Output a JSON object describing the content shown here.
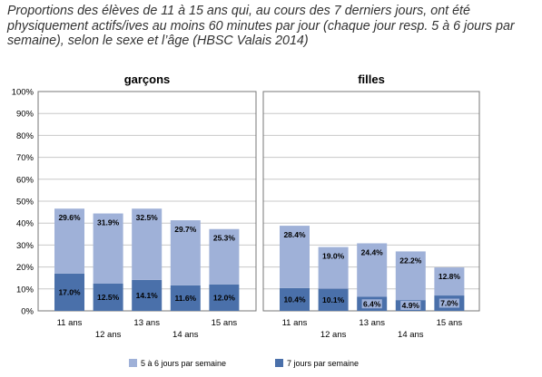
{
  "title": "Proportions des élèves de 11 à 15 ans qui, au cours des 7 derniers jours, ont été physiquement actifs/ives au moins 60 minutes par jour (chaque jour resp. 5 à 6 jours par semaine), selon le sexe et l’âge (HBSC Valais 2014)",
  "chart_data": {
    "type": "bar",
    "stacked": true,
    "ylim": [
      0,
      100
    ],
    "ytick_labels": [
      "0%",
      "10%",
      "20%",
      "30%",
      "40%",
      "50%",
      "60%",
      "70%",
      "80%",
      "90%",
      "100%"
    ],
    "grid": true,
    "legend_position": "bottom",
    "colors": {
      "top": "#9fb1d8",
      "bottom": "#4a70aa",
      "grid": "#c8c8c8"
    },
    "series": [
      {
        "name": "7 jours par semaine",
        "key": "bottom"
      },
      {
        "name": "5 à 6 jours par semaine",
        "key": "top"
      }
    ],
    "panels": [
      {
        "title": "garçons",
        "categories": [
          "11 ans",
          "12 ans",
          "13 ans",
          "14 ans",
          "15 ans"
        ],
        "bottom": [
          17.0,
          12.5,
          14.1,
          11.6,
          12.0
        ],
        "bottom_labels": [
          "17.0%",
          "12.5%",
          "14.1%",
          "11.6%",
          "12.0%"
        ],
        "top": [
          29.6,
          31.9,
          32.5,
          29.7,
          25.3
        ],
        "top_labels": [
          "29.6%",
          "31.9%",
          "32.5%",
          "29.7%",
          "25.3%"
        ]
      },
      {
        "title": "filles",
        "categories": [
          "11 ans",
          "12 ans",
          "13 ans",
          "14 ans",
          "15 ans"
        ],
        "bottom": [
          10.4,
          10.1,
          6.4,
          4.9,
          7.0
        ],
        "bottom_labels": [
          "10.4%",
          "10.1%",
          "6.4%",
          "4.9%",
          "7.0%"
        ],
        "top": [
          28.4,
          19.0,
          24.4,
          22.2,
          12.8
        ],
        "top_labels": [
          "28.4%",
          "19.0%",
          "24.4%",
          "22.2%",
          "12.8%"
        ]
      }
    ],
    "legend": [
      {
        "label": "5 à 6 jours par semaine",
        "key": "top"
      },
      {
        "label": "7 jours par semaine",
        "key": "bottom"
      }
    ]
  }
}
